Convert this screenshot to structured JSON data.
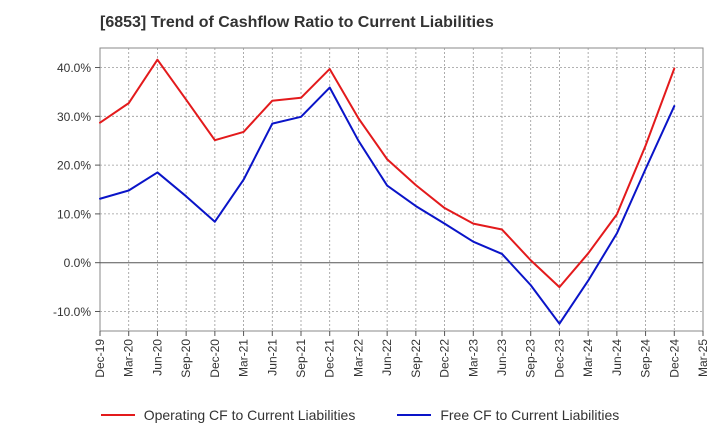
{
  "chart_data": {
    "type": "line",
    "title": "[6853]  Trend of Cashflow Ratio to Current Liabilities",
    "xlabel": "",
    "ylabel": "",
    "categories": [
      "Dec-19",
      "Mar-20",
      "Jun-20",
      "Sep-20",
      "Dec-20",
      "Mar-21",
      "Jun-21",
      "Sep-21",
      "Dec-21",
      "Mar-22",
      "Jun-22",
      "Sep-22",
      "Dec-22",
      "Mar-23",
      "Jun-23",
      "Sep-23",
      "Dec-23",
      "Mar-24",
      "Jun-24",
      "Sep-24",
      "Dec-24",
      "Mar-25"
    ],
    "ylim": [
      -14,
      44
    ],
    "yticks": [
      -10,
      0,
      10,
      20,
      30,
      40
    ],
    "ytick_labels": [
      "-10.0%",
      "0.0%",
      "10.0%",
      "20.0%",
      "30.0%",
      "40.0%"
    ],
    "grid": true,
    "legend_position": "bottom",
    "series": [
      {
        "name": "Operating CF to Current Liabilities",
        "color": "#e31a1c",
        "values": [
          28.7,
          32.7,
          41.6,
          33.4,
          25.1,
          26.8,
          33.2,
          33.8,
          39.7,
          29.6,
          21.2,
          15.9,
          11.2,
          8.0,
          6.8,
          0.5,
          -5.0,
          1.9,
          9.9,
          24.0,
          39.8,
          null
        ]
      },
      {
        "name": "Free CF to Current Liabilities",
        "color": "#0a14c8",
        "values": [
          13.1,
          14.8,
          18.5,
          13.6,
          8.4,
          17.0,
          28.5,
          29.9,
          35.9,
          25.0,
          15.8,
          11.6,
          8.0,
          4.3,
          1.8,
          -4.6,
          -12.5,
          -3.7,
          6.0,
          19.2,
          32.1,
          null
        ]
      }
    ]
  }
}
